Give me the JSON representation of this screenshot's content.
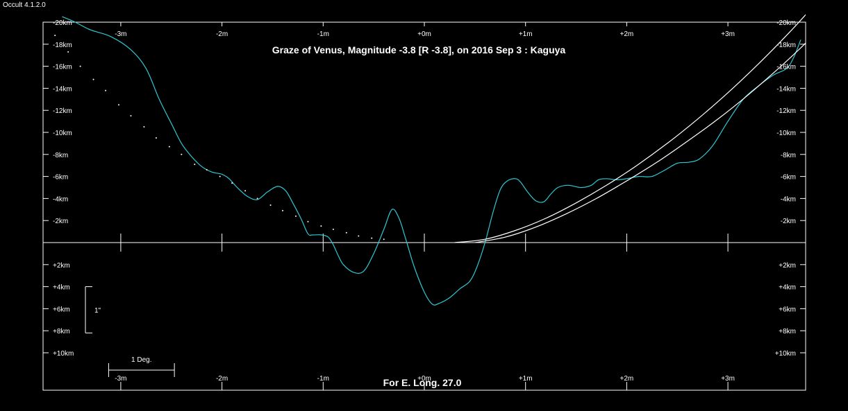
{
  "app": {
    "version": "Occult 4.1.2.0"
  },
  "chart_data": {
    "type": "line",
    "title": "Graze of  Venus,  Magnitude -3.8 [R -3.8],  on 2016 Sep  3  :  Kaguya",
    "footer": "For E. Long. 27.0",
    "x_unit": "minutes",
    "y_unit": "km",
    "xlim": [
      -3.8,
      3.8
    ],
    "ylim": [
      -20,
      13
    ],
    "x_ticks": [
      {
        "value": -3,
        "label": "-3m"
      },
      {
        "value": -2,
        "label": "-2m"
      },
      {
        "value": -1,
        "label": "-1m"
      },
      {
        "value": 0,
        "label": "+0m"
      },
      {
        "value": 1,
        "label": "+1m"
      },
      {
        "value": 2,
        "label": "+2m"
      },
      {
        "value": 3,
        "label": "+3m"
      }
    ],
    "y_ticks_top": [
      {
        "value": -20,
        "label": "-20km"
      },
      {
        "value": -18,
        "label": "-18km"
      },
      {
        "value": -16,
        "label": "-16km"
      },
      {
        "value": -14,
        "label": "-14km"
      },
      {
        "value": -12,
        "label": "-12km"
      },
      {
        "value": -10,
        "label": "-10km"
      },
      {
        "value": -8,
        "label": "-8km"
      },
      {
        "value": -6,
        "label": "-6km"
      },
      {
        "value": -4,
        "label": "-4km"
      },
      {
        "value": -2,
        "label": "-2km"
      }
    ],
    "y_ticks_bottom": [
      {
        "value": 2,
        "label": "+2km"
      },
      {
        "value": 4,
        "label": "+4km"
      },
      {
        "value": 6,
        "label": "+6km"
      },
      {
        "value": 8,
        "label": "+8km"
      },
      {
        "value": 10,
        "label": "+10km"
      }
    ],
    "scale_bars": {
      "arcsec_label": "1\"",
      "arcsec_range_km": [
        4,
        8.2
      ],
      "degree_label": "1 Deg.",
      "degree_range_min": [
        -3.12,
        -2.47
      ]
    },
    "series": [
      {
        "style": "solid",
        "color": "#2ec8d4",
        "x": [
          -3.58,
          -3.45,
          -3.3,
          -3.1,
          -2.9,
          -2.75,
          -2.62,
          -2.5,
          -2.4,
          -2.3,
          -2.2,
          -2.1,
          -2.0,
          -1.93,
          -1.85,
          -1.75,
          -1.65,
          -1.55,
          -1.45,
          -1.37,
          -1.3,
          -1.22,
          -1.15,
          -1.1,
          -1.02,
          -0.95,
          -0.9,
          -0.85,
          -0.8,
          -0.7,
          -0.6,
          -0.5,
          -0.4,
          -0.32,
          -0.25,
          -0.18,
          -0.1,
          0.0,
          0.08,
          0.15,
          0.25,
          0.35,
          0.45,
          0.52,
          0.6,
          0.68,
          0.75,
          0.82,
          0.9,
          0.95,
          1.02,
          1.1,
          1.18,
          1.25,
          1.32,
          1.42,
          1.55,
          1.65,
          1.72,
          1.8,
          1.9,
          2.0,
          2.12,
          2.25,
          2.38,
          2.5,
          2.62,
          2.72,
          2.85,
          3.0,
          3.15,
          3.3,
          3.45,
          3.58,
          3.65,
          3.72
        ],
        "y": [
          -20.5,
          -20.0,
          -19.3,
          -18.7,
          -17.5,
          -15.8,
          -13.0,
          -10.8,
          -9.0,
          -7.8,
          -6.9,
          -6.4,
          -6.2,
          -5.8,
          -5.0,
          -4.2,
          -3.9,
          -4.6,
          -5.1,
          -4.7,
          -3.6,
          -2.2,
          -0.8,
          -0.7,
          -0.7,
          -0.5,
          0.2,
          1.2,
          2.0,
          2.7,
          2.6,
          1.0,
          -1.2,
          -3.0,
          -2.2,
          -0.2,
          2.2,
          4.5,
          5.6,
          5.5,
          5.0,
          4.2,
          3.5,
          2.2,
          0.0,
          -2.8,
          -4.8,
          -5.6,
          -5.8,
          -5.5,
          -4.6,
          -3.8,
          -3.7,
          -4.4,
          -5.0,
          -5.2,
          -5.0,
          -5.2,
          -5.7,
          -5.8,
          -5.7,
          -5.8,
          -6.0,
          -6.0,
          -6.6,
          -7.2,
          -7.3,
          -7.6,
          -8.8,
          -11.0,
          -13.0,
          -14.2,
          -15.2,
          -15.8,
          -16.8,
          -18.4
        ]
      },
      {
        "style": "dotted",
        "color": "#ffffff",
        "x": [
          -3.65,
          -3.52,
          -3.4,
          -3.27,
          -3.15,
          -3.02,
          -2.9,
          -2.77,
          -2.65,
          -2.52,
          -2.4,
          -2.27,
          -2.15,
          -2.02,
          -1.9,
          -1.77,
          -1.65,
          -1.52,
          -1.4,
          -1.27,
          -1.15,
          -1.02,
          -0.9,
          -0.77,
          -0.65,
          -0.52,
          -0.4
        ],
        "y": [
          -18.8,
          -17.3,
          -16.0,
          -14.8,
          -13.8,
          -12.5,
          -11.5,
          -10.5,
          -9.5,
          -8.7,
          -8.0,
          -7.1,
          -6.6,
          -6.0,
          -5.4,
          -4.7,
          -4.0,
          -3.4,
          -2.9,
          -2.4,
          -1.9,
          -1.5,
          -1.2,
          -0.9,
          -0.6,
          -0.4,
          -0.3
        ]
      },
      {
        "style": "solid",
        "color": "#ffffff",
        "x": [
          0.3,
          0.6,
          0.9,
          1.2,
          1.5,
          1.8,
          2.1,
          2.4,
          2.7,
          3.0,
          3.3,
          3.6,
          3.8
        ],
        "y": [
          0.0,
          -0.3,
          -1.1,
          -2.2,
          -3.6,
          -5.2,
          -7.0,
          -9.0,
          -11.2,
          -13.6,
          -16.2,
          -19.0,
          -21.0
        ]
      },
      {
        "style": "solid",
        "color": "#ffffff",
        "x": [
          0.5,
          0.8,
          1.1,
          1.4,
          1.7,
          2.0,
          2.3,
          2.6,
          2.9,
          3.2,
          3.5,
          3.7,
          3.8
        ],
        "y": [
          0.0,
          -0.5,
          -1.4,
          -2.6,
          -4.0,
          -5.6,
          -7.3,
          -9.2,
          -11.2,
          -13.4,
          -15.8,
          -17.5,
          -18.4
        ]
      }
    ]
  }
}
